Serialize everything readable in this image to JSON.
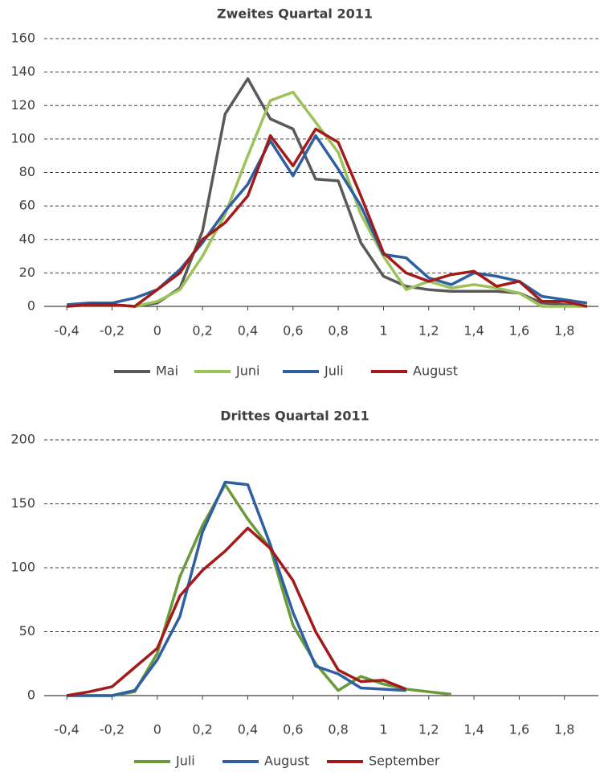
{
  "chart_data": [
    {
      "type": "line",
      "title": "Zweites Quartal 2011",
      "x": [
        -0.4,
        -0.3,
        -0.2,
        -0.1,
        0,
        0.1,
        0.2,
        0.3,
        0.4,
        0.5,
        0.6,
        0.7,
        0.8,
        0.9,
        1.0,
        1.1,
        1.2,
        1.3,
        1.4,
        1.5,
        1.6,
        1.7,
        1.8,
        1.9
      ],
      "series": [
        {
          "name": "Mai",
          "color": "#595959",
          "values": [
            0,
            1,
            1,
            0,
            2,
            11,
            45,
            115,
            136,
            112,
            106,
            76,
            75,
            38,
            18,
            12,
            10,
            9,
            9,
            9,
            8,
            2,
            1,
            0
          ]
        },
        {
          "name": "Juni",
          "color": "#9bc35a",
          "values": [
            0,
            1,
            1,
            0,
            3,
            10,
            30,
            55,
            90,
            123,
            128,
            110,
            92,
            55,
            30,
            10,
            15,
            11,
            13,
            11,
            8,
            0,
            0,
            0
          ]
        },
        {
          "name": "Juli",
          "color": "#2e5fa3",
          "values": [
            1,
            2,
            2,
            5,
            10,
            22,
            38,
            57,
            73,
            99,
            78,
            102,
            82,
            60,
            31,
            29,
            17,
            13,
            20,
            18,
            15,
            6,
            4,
            2
          ]
        },
        {
          "name": "August",
          "color": "#a31a1a",
          "values": [
            0,
            1,
            1,
            0,
            10,
            20,
            40,
            50,
            66,
            102,
            84,
            106,
            98,
            66,
            32,
            20,
            15,
            19,
            21,
            12,
            15,
            3,
            3,
            0
          ]
        }
      ],
      "xlim": [
        -0.5,
        1.95
      ],
      "ylim": [
        0,
        160
      ],
      "xticks": [
        {
          "value": -0.4,
          "label": "-0,4"
        },
        {
          "value": -0.2,
          "label": "-0,2"
        },
        0,
        {
          "value": 0.2,
          "label": "0,2"
        },
        {
          "value": 0.4,
          "label": "0,4"
        },
        {
          "value": 0.6,
          "label": "0,6"
        },
        {
          "value": 0.8,
          "label": "0,8"
        },
        1,
        {
          "value": 1.2,
          "label": "1,2"
        },
        {
          "value": 1.4,
          "label": "1,4"
        },
        {
          "value": 1.6,
          "label": "1,6"
        },
        {
          "value": 1.8,
          "label": "1,8"
        }
      ],
      "yticks": [
        0,
        20,
        40,
        60,
        80,
        100,
        120,
        140,
        160
      ],
      "grid": true,
      "legend": "bottom"
    },
    {
      "type": "line",
      "title": "Drittes Quartal 2011",
      "x": [
        -0.4,
        -0.3,
        -0.2,
        -0.1,
        0,
        0.1,
        0.2,
        0.3,
        0.4,
        0.5,
        0.6,
        0.7,
        0.8,
        0.9,
        1.0,
        1.1,
        1.2,
        1.3
      ],
      "series": [
        {
          "name": "Juli",
          "color": "#6a9a3a",
          "values": [
            0,
            0,
            0,
            3,
            33,
            93,
            133,
            165,
            138,
            115,
            55,
            25,
            4,
            15,
            9,
            5,
            3,
            1
          ]
        },
        {
          "name": "August",
          "color": "#2e5fa3",
          "values": [
            0,
            0,
            0,
            4,
            28,
            62,
            128,
            167,
            165,
            118,
            65,
            23,
            17,
            6,
            5,
            4,
            null,
            null
          ]
        },
        {
          "name": "September",
          "color": "#a31a1a",
          "values": [
            0,
            3,
            7,
            22,
            37,
            78,
            98,
            113,
            131,
            115,
            90,
            50,
            20,
            11,
            12,
            5,
            null,
            null
          ]
        }
      ],
      "xlim": [
        -0.5,
        1.95
      ],
      "ylim": [
        0,
        200
      ],
      "xticks": [
        {
          "value": -0.4,
          "label": "-0,4"
        },
        {
          "value": -0.2,
          "label": "-0,2"
        },
        0,
        {
          "value": 0.2,
          "label": "0,2"
        },
        {
          "value": 0.4,
          "label": "0,4"
        },
        {
          "value": 0.6,
          "label": "0,6"
        },
        {
          "value": 0.8,
          "label": "0,8"
        },
        1,
        {
          "value": 1.2,
          "label": "1,2"
        },
        {
          "value": 1.4,
          "label": "1,4"
        },
        {
          "value": 1.6,
          "label": "1,6"
        },
        {
          "value": 1.8,
          "label": "1,8"
        }
      ],
      "yticks": [
        0,
        50,
        100,
        150,
        200
      ],
      "grid": true,
      "legend": "bottom"
    }
  ]
}
